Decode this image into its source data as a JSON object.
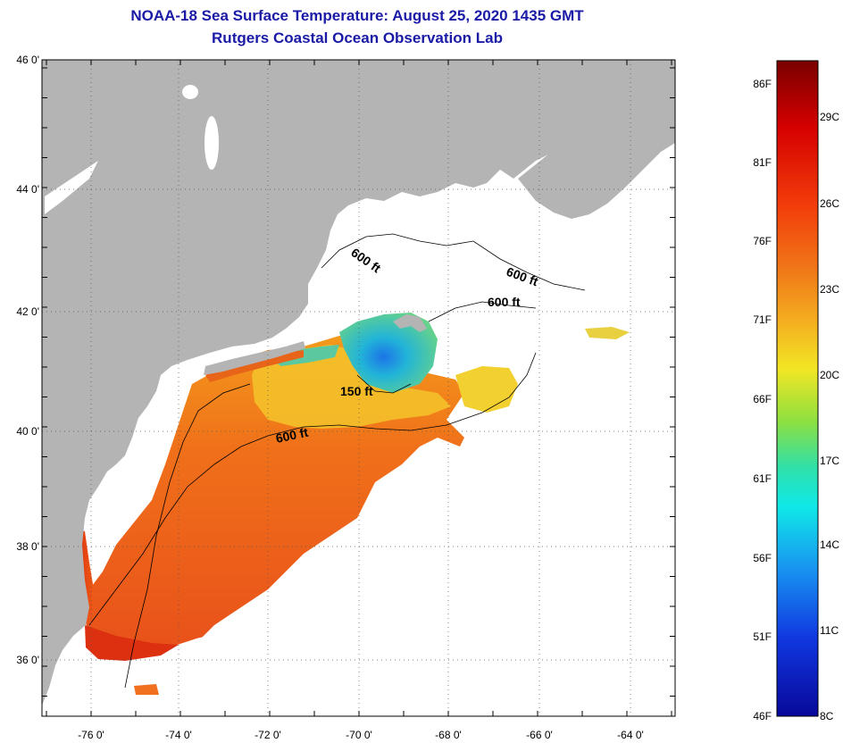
{
  "header": {
    "title": "NOAA-18 Sea Surface Temperature:  August 25, 2020 1435 GMT",
    "subtitle": "Rutgers Coastal Ocean Observation Lab"
  },
  "map": {
    "lat_labels": [
      "46 0'",
      "44 0'",
      "42 0'",
      "40 0'",
      "38 0'",
      "36 0'"
    ],
    "lon_labels": [
      "-76 0'",
      "-74 0'",
      "-72 0'",
      "-70 0'",
      "-68 0'",
      "-66 0'",
      "-64 0'"
    ],
    "contour_labels": [
      "600 ft",
      "600 ft",
      "600 ft",
      "150 ft",
      "600 ft"
    ],
    "colors": {
      "land": "#b4b4b4",
      "cloud": "#ffffff",
      "grid": "#555555"
    }
  },
  "colorbar": {
    "f_labels": [
      "86F",
      "81F",
      "76F",
      "71F",
      "66F",
      "61F",
      "56F",
      "51F",
      "46F"
    ],
    "c_labels": [
      "29C",
      "26C",
      "23C",
      "20C",
      "17C",
      "14C",
      "11C",
      "8C"
    ]
  }
}
